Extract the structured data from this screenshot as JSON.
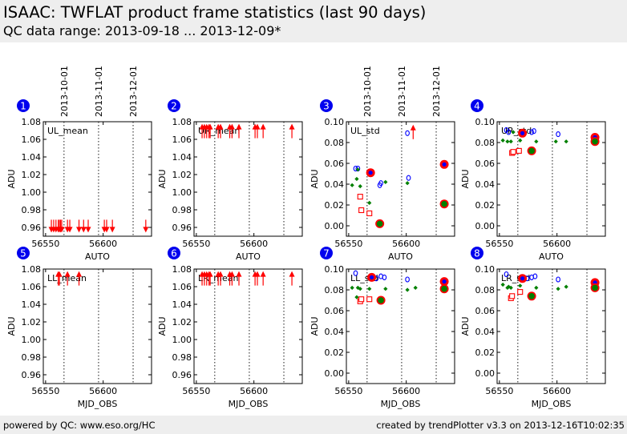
{
  "header": {
    "title": "ISAAC: TWFLAT product frame statistics  (last 90 days)",
    "subtitle": "QC data range: 2013-09-18 ... 2013-12-09*"
  },
  "footer": {
    "left": "powered by QC: www.eso.org/HC",
    "right": "created by trendPlotter v3.3 on 2013-12-16T10:02:35"
  },
  "colors": {
    "header_bg": "#eeeeee",
    "marker_blue": "#0000ff",
    "marker_red": "#ff0000",
    "marker_green": "#008000",
    "badge": "#0000ee"
  },
  "chart_data": [
    {
      "type": "scatter",
      "panel": "1",
      "label": "UL_mean",
      "ylabel": "ADU",
      "xlabel": "AUTO",
      "xlim": [
        56548,
        56642
      ],
      "ylim": [
        0.95,
        1.08
      ],
      "xticks": [
        56550,
        56600
      ],
      "yticks": [
        0.96,
        0.98,
        1.0,
        1.02,
        1.04,
        1.06,
        1.08
      ],
      "date_ticks": [
        {
          "x": 56566,
          "label": "2013-10-01"
        },
        {
          "x": 56596,
          "label": "2013-11-01"
        },
        {
          "x": 56626,
          "label": "2013-12-01"
        }
      ],
      "series": [
        {
          "marker": "arrow-down",
          "points": [
            [
              56555,
              0.956
            ],
            [
              56557,
              0.956
            ],
            [
              56559,
              0.956
            ],
            [
              56561,
              0.956
            ],
            [
              56562,
              0.956
            ],
            [
              56563,
              0.956
            ],
            [
              56564,
              0.956
            ],
            [
              56569,
              0.956
            ],
            [
              56571,
              0.956
            ],
            [
              56579,
              0.956
            ],
            [
              56583,
              0.956
            ],
            [
              56587,
              0.956
            ],
            [
              56601,
              0.956
            ],
            [
              56603,
              0.956
            ],
            [
              56608,
              0.956
            ],
            [
              56637,
              0.956
            ]
          ]
        }
      ]
    },
    {
      "type": "scatter",
      "panel": "2",
      "label": "UR_mean",
      "ylabel": "ADU",
      "xlabel": "AUTO",
      "xlim": [
        56548,
        56642
      ],
      "ylim": [
        0.95,
        1.08
      ],
      "xticks": [
        56550,
        56600
      ],
      "yticks": [
        0.96,
        0.98,
        1.0,
        1.02,
        1.04,
        1.06,
        1.08
      ],
      "date_ticks": [],
      "series": [
        {
          "marker": "arrow-up",
          "points": [
            [
              56555,
              1.074
            ],
            [
              56557,
              1.074
            ],
            [
              56559,
              1.074
            ],
            [
              56561,
              1.074
            ],
            [
              56562,
              1.074
            ],
            [
              56569,
              1.074
            ],
            [
              56571,
              1.074
            ],
            [
              56579,
              1.074
            ],
            [
              56581,
              1.074
            ],
            [
              56587,
              1.074
            ],
            [
              56601,
              1.074
            ],
            [
              56603,
              1.074
            ],
            [
              56608,
              1.074
            ],
            [
              56633,
              1.074
            ]
          ]
        }
      ]
    },
    {
      "type": "scatter",
      "panel": "3",
      "label": "UL_std",
      "ylabel": "ADU",
      "xlabel": "AUTO",
      "xlim": [
        56548,
        56642
      ],
      "ylim": [
        -0.01,
        0.1
      ],
      "xticks": [
        56550,
        56600
      ],
      "yticks": [
        0.0,
        0.02,
        0.04,
        0.06,
        0.08,
        0.1
      ],
      "date_ticks": [
        {
          "x": 56566,
          "label": "2013-10-01"
        },
        {
          "x": 56596,
          "label": "2013-11-01"
        },
        {
          "x": 56626,
          "label": "2013-12-01"
        }
      ],
      "series": [
        {
          "marker": "open-blue",
          "points": [
            [
              56556,
              0.055
            ],
            [
              56558,
              0.055
            ],
            [
              56577,
              0.039
            ],
            [
              56578,
              0.041
            ],
            [
              56601,
              0.089
            ],
            [
              56602,
              0.046
            ]
          ]
        },
        {
          "marker": "green-diamond",
          "points": [
            [
              56553,
              0.039
            ],
            [
              56557,
              0.045
            ],
            [
              56558,
              0.054
            ],
            [
              56560,
              0.038
            ],
            [
              56568,
              0.022
            ],
            [
              56582,
              0.042
            ],
            [
              56601,
              0.041
            ]
          ]
        },
        {
          "marker": "open-red-square",
          "points": [
            [
              56560,
              0.028
            ],
            [
              56561,
              0.015
            ],
            [
              56568,
              0.012
            ]
          ]
        },
        {
          "marker": "red-circle-blue",
          "points": [
            [
              56569,
              0.051
            ]
          ]
        },
        {
          "marker": "red-circle-green",
          "points": [
            [
              56577,
              0.002
            ],
            [
              56633,
              0.021
            ]
          ]
        },
        {
          "marker": "red-circle-blue",
          "points": [
            [
              56633,
              0.059
            ]
          ]
        },
        {
          "marker": "arrow-up",
          "points": [
            [
              56606,
              0.094
            ]
          ]
        }
      ]
    },
    {
      "type": "scatter",
      "panel": "4",
      "label": "UR_std",
      "ylabel": "ADU",
      "xlabel": "AUTO",
      "xlim": [
        56548,
        56642
      ],
      "ylim": [
        -0.01,
        0.1
      ],
      "xticks": [
        56550,
        56600
      ],
      "yticks": [
        0.0,
        0.02,
        0.04,
        0.06,
        0.08,
        0.1
      ],
      "date_ticks": [],
      "series": [
        {
          "marker": "open-blue",
          "points": [
            [
              56556,
              0.092
            ],
            [
              56558,
              0.09
            ],
            [
              56578,
              0.09
            ],
            [
              56580,
              0.091
            ],
            [
              56601,
              0.088
            ]
          ]
        },
        {
          "marker": "green-diamond",
          "points": [
            [
              56553,
              0.082
            ],
            [
              56557,
              0.081
            ],
            [
              56560,
              0.081
            ],
            [
              56562,
              0.09
            ],
            [
              56568,
              0.082
            ],
            [
              56582,
              0.081
            ],
            [
              56599,
              0.081
            ],
            [
              56608,
              0.081
            ]
          ]
        },
        {
          "marker": "open-red-square",
          "points": [
            [
              56561,
              0.07
            ],
            [
              56562,
              0.071
            ],
            [
              56567,
              0.072
            ]
          ]
        },
        {
          "marker": "red-circle-blue",
          "points": [
            [
              56570,
              0.089
            ],
            [
              56633,
              0.085
            ]
          ]
        },
        {
          "marker": "red-circle-green",
          "points": [
            [
              56578,
              0.072
            ],
            [
              56633,
              0.081
            ]
          ]
        }
      ]
    },
    {
      "type": "scatter",
      "panel": "5",
      "label": "LL_mean",
      "ylabel": "ADU",
      "xlabel": "MJD_OBS",
      "xlim": [
        56548,
        56642
      ],
      "ylim": [
        0.95,
        1.08
      ],
      "xticks": [
        56550,
        56600
      ],
      "yticks": [
        0.96,
        0.98,
        1.0,
        1.02,
        1.04,
        1.06,
        1.08
      ],
      "date_ticks": [],
      "series": [
        {
          "marker": "arrow-up",
          "points": [
            [
              56561,
              1.074
            ],
            [
              56562,
              1.074
            ],
            [
              56569,
              1.074
            ],
            [
              56579,
              1.074
            ]
          ]
        }
      ]
    },
    {
      "type": "scatter",
      "panel": "6",
      "label": "LR_mean",
      "ylabel": "ADU",
      "xlabel": "MJD_OBS",
      "xlim": [
        56548,
        56642
      ],
      "ylim": [
        0.95,
        1.08
      ],
      "xticks": [
        56550,
        56600
      ],
      "yticks": [
        0.96,
        0.98,
        1.0,
        1.02,
        1.04,
        1.06,
        1.08
      ],
      "date_ticks": [],
      "series": [
        {
          "marker": "arrow-up",
          "points": [
            [
              56555,
              1.074
            ],
            [
              56557,
              1.074
            ],
            [
              56559,
              1.074
            ],
            [
              56561,
              1.074
            ],
            [
              56562,
              1.074
            ],
            [
              56569,
              1.074
            ],
            [
              56571,
              1.074
            ],
            [
              56579,
              1.074
            ],
            [
              56581,
              1.074
            ],
            [
              56587,
              1.074
            ],
            [
              56601,
              1.074
            ],
            [
              56603,
              1.074
            ],
            [
              56608,
              1.074
            ],
            [
              56633,
              1.074
            ]
          ]
        }
      ]
    },
    {
      "type": "scatter",
      "panel": "7",
      "label": "LL_std",
      "ylabel": "ADU",
      "xlabel": "MJD_OBS",
      "xlim": [
        56548,
        56642
      ],
      "ylim": [
        -0.01,
        0.1
      ],
      "xticks": [
        56550,
        56600
      ],
      "yticks": [
        0.0,
        0.02,
        0.04,
        0.06,
        0.08,
        0.1
      ],
      "date_ticks": [],
      "series": [
        {
          "marker": "open-blue",
          "points": [
            [
              56556,
              0.096
            ],
            [
              56574,
              0.091
            ],
            [
              56578,
              0.093
            ],
            [
              56581,
              0.092
            ],
            [
              56601,
              0.09
            ]
          ]
        },
        {
          "marker": "green-diamond",
          "points": [
            [
              56553,
              0.082
            ],
            [
              56557,
              0.073
            ],
            [
              56558,
              0.082
            ],
            [
              56560,
              0.081
            ],
            [
              56568,
              0.081
            ],
            [
              56582,
              0.081
            ],
            [
              56601,
              0.08
            ],
            [
              56608,
              0.082
            ]
          ]
        },
        {
          "marker": "open-red-square",
          "points": [
            [
              56560,
              0.069
            ],
            [
              56561,
              0.071
            ],
            [
              56568,
              0.071
            ]
          ]
        },
        {
          "marker": "red-circle-blue",
          "points": [
            [
              56570,
              0.092
            ],
            [
              56633,
              0.088
            ]
          ]
        },
        {
          "marker": "red-circle-green",
          "points": [
            [
              56578,
              0.07
            ],
            [
              56633,
              0.081
            ]
          ]
        }
      ]
    },
    {
      "type": "scatter",
      "panel": "8",
      "label": "LR_std",
      "ylabel": "ADU",
      "xlabel": "MJD_OBS",
      "xlim": [
        56548,
        56642
      ],
      "ylim": [
        -0.01,
        0.1
      ],
      "xticks": [
        56550,
        56600
      ],
      "yticks": [
        0.0,
        0.02,
        0.04,
        0.06,
        0.08,
        0.1
      ],
      "date_ticks": [],
      "series": [
        {
          "marker": "open-blue",
          "points": [
            [
              56556,
              0.095
            ],
            [
              56574,
              0.091
            ],
            [
              56578,
              0.092
            ],
            [
              56581,
              0.093
            ],
            [
              56601,
              0.09
            ]
          ]
        },
        {
          "marker": "green-diamond",
          "points": [
            [
              56553,
              0.085
            ],
            [
              56557,
              0.082
            ],
            [
              56558,
              0.083
            ],
            [
              56560,
              0.082
            ],
            [
              56568,
              0.084
            ],
            [
              56582,
              0.082
            ],
            [
              56601,
              0.081
            ],
            [
              56608,
              0.083
            ]
          ]
        },
        {
          "marker": "open-red-square",
          "points": [
            [
              56560,
              0.072
            ],
            [
              56561,
              0.074
            ],
            [
              56568,
              0.078
            ]
          ]
        },
        {
          "marker": "red-circle-blue",
          "points": [
            [
              56570,
              0.091
            ],
            [
              56633,
              0.087
            ]
          ]
        },
        {
          "marker": "red-circle-green",
          "points": [
            [
              56578,
              0.074
            ],
            [
              56633,
              0.082
            ]
          ]
        }
      ]
    }
  ]
}
